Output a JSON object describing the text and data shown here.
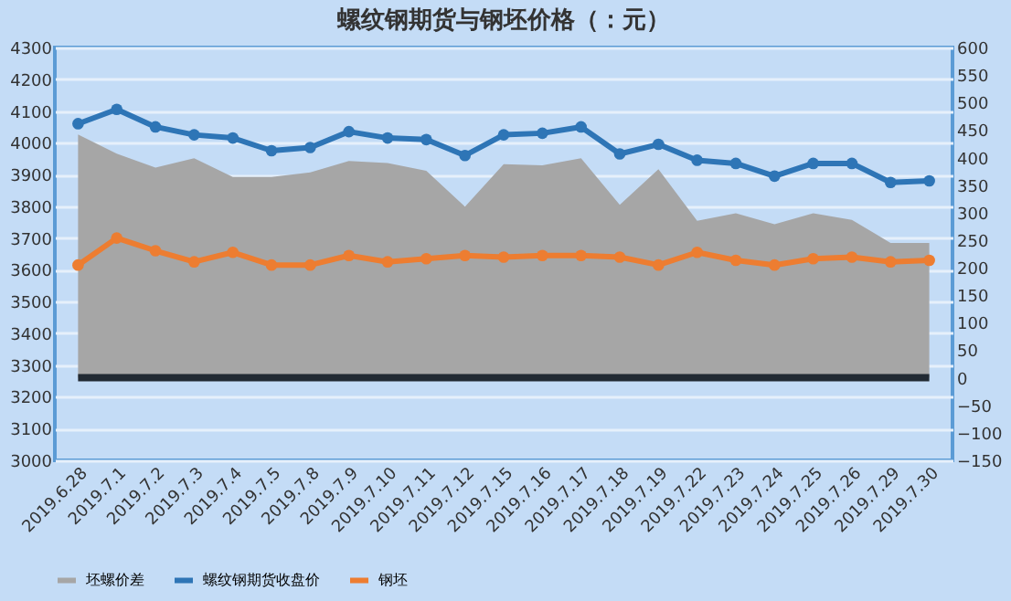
{
  "chart_data": {
    "type": "line",
    "title": "螺纹钢期货与钢坯价格（：元）",
    "categories": [
      "2019.6.28",
      "2019.7.1",
      "2019.7.2",
      "2019.7.3",
      "2019.7.4",
      "2019.7.5",
      "2019.7.8",
      "2019.7.9",
      "2019.7.10",
      "2019.7.11",
      "2019.7.12",
      "2019.7.15",
      "2019.7.16",
      "2019.7.17",
      "2019.7.18",
      "2019.7.19",
      "2019.7.22",
      "2019.7.23",
      "2019.7.24",
      "2019.7.25",
      "2019.7.26",
      "2019.7.29",
      "2019.7.30"
    ],
    "series": [
      {
        "name": "坯螺价差",
        "type": "area",
        "axis": "y2",
        "color": "#a6a6a6",
        "values": [
          442,
          407,
          382,
          399,
          365,
          365,
          373,
          394,
          390,
          376,
          311,
          388,
          386,
          399,
          314,
          379,
          285,
          299,
          279,
          299,
          287,
          245,
          245
        ]
      },
      {
        "name": "螺纹钢期货收盘价",
        "marker": "circle",
        "color": "#2e75b6",
        "values": [
          4060,
          4105,
          4050,
          4025,
          4015,
          3975,
          3985,
          4035,
          4015,
          4010,
          3960,
          4025,
          4030,
          4050,
          3965,
          3995,
          3945,
          3935,
          3895,
          3935,
          3935,
          3875,
          3880
        ]
      },
      {
        "name": "钢坯",
        "marker": "circle",
        "color": "#ed7d31",
        "values": [
          3615,
          3700,
          3660,
          3625,
          3655,
          3615,
          3615,
          3645,
          3625,
          3635,
          3645,
          3640,
          3645,
          3645,
          3640,
          3615,
          3655,
          3630,
          3615,
          3635,
          3640,
          3625,
          3630
        ]
      }
    ],
    "ylim": [
      3000,
      4300
    ],
    "yticks": [
      3000,
      3100,
      3200,
      3300,
      3400,
      3500,
      3600,
      3700,
      3800,
      3900,
      4000,
      4100,
      4200,
      4300
    ],
    "y2lim": [
      -150,
      600
    ],
    "y2ticks": [
      -150,
      -100,
      -50,
      0,
      50,
      100,
      150,
      200,
      250,
      300,
      350,
      400,
      450,
      500,
      550,
      600
    ],
    "ref_lines": [
      {
        "axis": "y2",
        "value": 0,
        "color": "#222a33"
      }
    ],
    "grid": "y",
    "legend": "bottom"
  }
}
